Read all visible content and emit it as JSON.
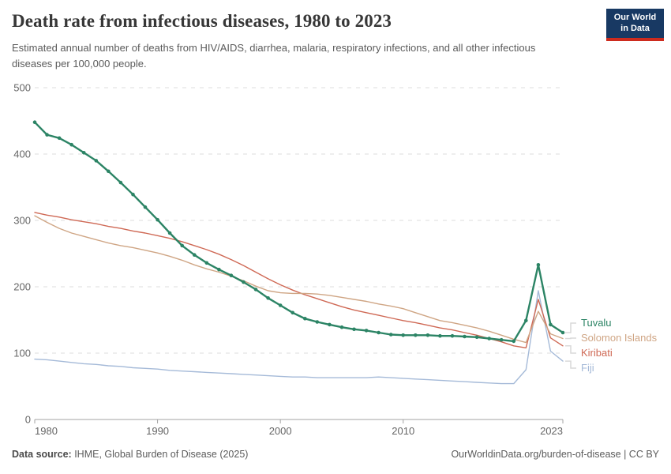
{
  "logo": {
    "line1": "Our World",
    "line2": "in Data"
  },
  "footer": {
    "source_label": "Data source:",
    "source_text": " IHME, Global Burden of Disease (2025)",
    "attribution": "OurWorldinData.org/burden-of-disease | CC BY"
  },
  "chart_data": {
    "type": "line",
    "title": "Death rate from infectious diseases, 1980 to 2023",
    "subtitle": "Estimated annual number of deaths from HIV/AIDS, diarrhea, malaria, respiratory infections, and all other infectious diseases per 100,000 people.",
    "xlabel": "",
    "ylabel": "",
    "ylim": [
      0,
      500
    ],
    "yticks": [
      0,
      100,
      200,
      300,
      400,
      500
    ],
    "xticks": [
      1980,
      1990,
      2000,
      2010,
      2023
    ],
    "grid": "horizontal-dashed",
    "legend_position": "right of line ends",
    "x": [
      1980,
      1981,
      1982,
      1983,
      1984,
      1985,
      1986,
      1987,
      1988,
      1989,
      1990,
      1991,
      1992,
      1993,
      1994,
      1995,
      1996,
      1997,
      1998,
      1999,
      2000,
      2001,
      2002,
      2003,
      2004,
      2005,
      2006,
      2007,
      2008,
      2009,
      2010,
      2011,
      2012,
      2013,
      2014,
      2015,
      2016,
      2017,
      2018,
      2019,
      2020,
      2021,
      2022,
      2023
    ],
    "series": [
      {
        "name": "Tuvalu",
        "color": "#2C8465",
        "markers": true,
        "values": [
          448,
          429,
          424,
          414,
          402,
          390,
          374,
          357,
          339,
          320,
          301,
          281,
          262,
          248,
          236,
          226,
          217,
          207,
          196,
          183,
          172,
          161,
          152,
          147,
          143,
          139,
          136,
          134,
          131,
          128,
          127,
          127,
          127,
          126,
          126,
          125,
          124,
          122,
          120,
          118,
          149,
          233,
          143,
          131
        ]
      },
      {
        "name": "Solomon Islands",
        "color": "#CFA584",
        "markers": false,
        "values": [
          307,
          297,
          288,
          281,
          276,
          271,
          266,
          262,
          259,
          255,
          251,
          246,
          240,
          233,
          227,
          222,
          216,
          209,
          201,
          194,
          191,
          190,
          190,
          189,
          187,
          184,
          181,
          178,
          174,
          171,
          167,
          161,
          155,
          149,
          146,
          142,
          138,
          133,
          127,
          121,
          116,
          163,
          129,
          122
        ]
      },
      {
        "name": "Kiribati",
        "color": "#CF6955",
        "markers": false,
        "values": [
          312,
          308,
          305,
          301,
          298,
          295,
          291,
          288,
          284,
          281,
          277,
          273,
          268,
          262,
          256,
          249,
          241,
          232,
          222,
          212,
          203,
          195,
          188,
          182,
          176,
          170,
          165,
          161,
          157,
          153,
          149,
          146,
          142,
          138,
          135,
          131,
          127,
          122,
          117,
          111,
          108,
          181,
          123,
          111
        ]
      },
      {
        "name": "Fiji",
        "color": "#A5BAD8",
        "markers": false,
        "values": [
          91,
          90,
          88,
          86,
          84,
          83,
          81,
          80,
          78,
          77,
          76,
          74,
          73,
          72,
          71,
          70,
          69,
          68,
          67,
          66,
          65,
          64,
          64,
          63,
          63,
          63,
          63,
          63,
          64,
          63,
          62,
          61,
          60,
          59,
          58,
          57,
          56,
          55,
          54,
          54,
          75,
          194,
          103,
          88
        ]
      }
    ]
  }
}
